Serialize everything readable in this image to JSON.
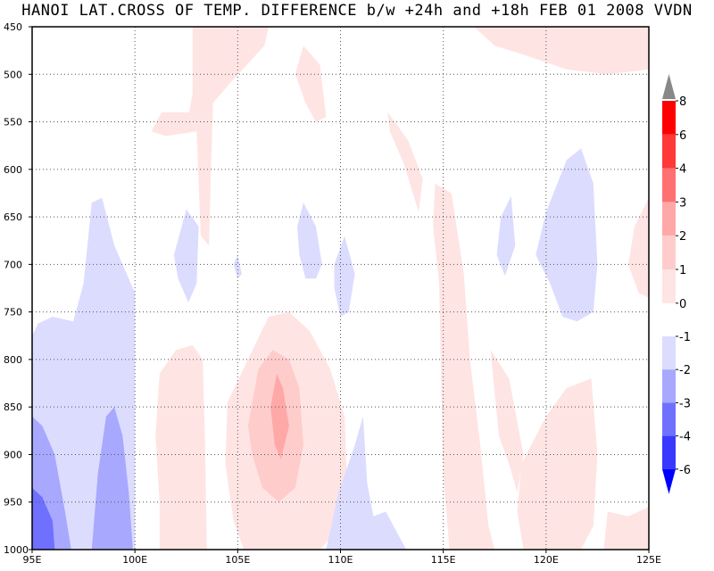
{
  "chart_data": {
    "type": "heatmap",
    "title": "HANOI LAT.CROSS OF TEMP. DIFFERENCE b/w +24h and +18h FEB 01 2008 VVDN",
    "x_ticks": [
      "95E",
      "100E",
      "105E",
      "110E",
      "115E",
      "120E",
      "125E"
    ],
    "y_ticks": [
      "450",
      "500",
      "550",
      "600",
      "650",
      "700",
      "750",
      "800",
      "850",
      "900",
      "950",
      "1000"
    ],
    "xlim": [
      95,
      125
    ],
    "ylim": [
      1000,
      450
    ],
    "y_axis": "pressure (hPa), decreasing upward",
    "grid": true,
    "legend_placement": "right",
    "colorbar_positive": {
      "labels": [
        "8",
        "6",
        "4",
        "3",
        "2",
        "1",
        "0"
      ],
      "colors": [
        "#ff0000",
        "#ff3838",
        "#ff7070",
        "#ffa8a8",
        "#ffcccc",
        "#ffe4e4"
      ]
    },
    "colorbar_negative": {
      "labels": [
        "-1",
        "-2",
        "-3",
        "-4",
        "-6"
      ],
      "colors": [
        "#dcdcff",
        "#a8a8ff",
        "#7070ff",
        "#3838ff",
        "#0000ff"
      ]
    },
    "regions": [
      {
        "level": 1,
        "points": [
          [
            102.8,
            450
          ],
          [
            106.5,
            450
          ],
          [
            106.3,
            470
          ],
          [
            104.6,
            510
          ],
          [
            103.8,
            530
          ],
          [
            103.7,
            600
          ],
          [
            103.6,
            680
          ],
          [
            103.2,
            670
          ],
          [
            103.0,
            560
          ],
          [
            102.6,
            545
          ],
          [
            102.8,
            520
          ]
        ]
      },
      {
        "level": 1,
        "points": [
          [
            101.3,
            540
          ],
          [
            102.9,
            540
          ],
          [
            103.0,
            560
          ],
          [
            101.5,
            565
          ],
          [
            100.8,
            560
          ]
        ]
      },
      {
        "level": 1,
        "points": [
          [
            108.2,
            470
          ],
          [
            109.0,
            490
          ],
          [
            109.3,
            545
          ],
          [
            108.8,
            550
          ],
          [
            108.3,
            530
          ],
          [
            107.8,
            500
          ]
        ]
      },
      {
        "level": 1,
        "points": [
          [
            112.3,
            540
          ],
          [
            113.3,
            570
          ],
          [
            114.0,
            610
          ],
          [
            113.8,
            645
          ],
          [
            113.1,
            595
          ],
          [
            112.4,
            560
          ]
        ]
      },
      {
        "level": 1,
        "points": [
          [
            116.5,
            450
          ],
          [
            125.0,
            450
          ],
          [
            125.0,
            495
          ],
          [
            123.0,
            500
          ],
          [
            121.0,
            495
          ],
          [
            119.0,
            480
          ],
          [
            117.5,
            470
          ]
        ]
      },
      {
        "level": 1,
        "points": [
          [
            104.5,
            845
          ],
          [
            105.5,
            800
          ],
          [
            106.5,
            755
          ],
          [
            107.5,
            750
          ],
          [
            108.5,
            770
          ],
          [
            109.5,
            810
          ],
          [
            110.2,
            860
          ],
          [
            110.3,
            920
          ],
          [
            110.0,
            975
          ],
          [
            109.0,
            1000
          ],
          [
            105.3,
            1000
          ],
          [
            104.8,
            970
          ],
          [
            104.4,
            910
          ]
        ]
      },
      {
        "level": 1,
        "points": [
          [
            101.2,
            815
          ],
          [
            102.0,
            790
          ],
          [
            102.8,
            785
          ],
          [
            103.3,
            800
          ],
          [
            103.4,
            880
          ],
          [
            103.5,
            1000
          ],
          [
            101.2,
            1000
          ],
          [
            101.2,
            950
          ],
          [
            101.0,
            880
          ]
        ]
      },
      {
        "level": 1,
        "points": [
          [
            114.6,
            615
          ],
          [
            115.4,
            625
          ],
          [
            116.0,
            710
          ],
          [
            116.3,
            800
          ],
          [
            116.8,
            890
          ],
          [
            117.2,
            975
          ],
          [
            117.5,
            1000
          ],
          [
            115.3,
            1000
          ],
          [
            115.0,
            920
          ],
          [
            114.9,
            830
          ],
          [
            114.8,
            720
          ],
          [
            114.5,
            660
          ]
        ]
      },
      {
        "level": 1,
        "points": [
          [
            117.3,
            790
          ],
          [
            118.2,
            820
          ],
          [
            118.9,
            900
          ],
          [
            118.6,
            940
          ],
          [
            118.2,
            910
          ],
          [
            117.7,
            880
          ]
        ]
      },
      {
        "level": 1,
        "points": [
          [
            118.8,
            910
          ],
          [
            120.0,
            860
          ],
          [
            121.0,
            830
          ],
          [
            122.2,
            820
          ],
          [
            122.5,
            900
          ],
          [
            122.3,
            975
          ],
          [
            121.7,
            1000
          ],
          [
            118.9,
            1000
          ],
          [
            118.6,
            960
          ]
        ]
      },
      {
        "level": 1,
        "points": [
          [
            123.0,
            960
          ],
          [
            124.0,
            965
          ],
          [
            125.0,
            955
          ],
          [
            125.0,
            1000
          ],
          [
            122.8,
            1000
          ]
        ]
      },
      {
        "level": 1,
        "points": [
          [
            125.0,
            630
          ],
          [
            124.3,
            660
          ],
          [
            124.0,
            700
          ],
          [
            124.5,
            730
          ],
          [
            125.0,
            735
          ]
        ]
      },
      {
        "level": 2,
        "points": [
          [
            105.5,
            870
          ],
          [
            106.0,
            810
          ],
          [
            106.7,
            790
          ],
          [
            107.5,
            800
          ],
          [
            108.0,
            830
          ],
          [
            108.2,
            890
          ],
          [
            107.8,
            935
          ],
          [
            107.0,
            950
          ],
          [
            106.2,
            935
          ],
          [
            105.7,
            900
          ]
        ]
      },
      {
        "level": 3,
        "points": [
          [
            106.6,
            850
          ],
          [
            106.9,
            815
          ],
          [
            107.2,
            830
          ],
          [
            107.5,
            870
          ],
          [
            107.1,
            905
          ],
          [
            106.8,
            890
          ]
        ]
      },
      {
        "level": -1,
        "points": [
          [
            95.0,
            775
          ],
          [
            95.3,
            762
          ],
          [
            96.0,
            755
          ],
          [
            97.0,
            760
          ],
          [
            97.5,
            720
          ],
          [
            97.9,
            635
          ],
          [
            98.4,
            630
          ],
          [
            99.0,
            680
          ],
          [
            99.8,
            720
          ],
          [
            100.0,
            730
          ],
          [
            100.0,
            1000
          ],
          [
            95.0,
            1000
          ]
        ]
      },
      {
        "level": -1,
        "points": [
          [
            101.9,
            690
          ],
          [
            102.5,
            642
          ],
          [
            103.1,
            660
          ],
          [
            103.0,
            720
          ],
          [
            102.6,
            740
          ],
          [
            102.1,
            715
          ]
        ]
      },
      {
        "level": -1,
        "points": [
          [
            104.8,
            700
          ],
          [
            105.0,
            690
          ],
          [
            105.2,
            710
          ],
          [
            105.0,
            715
          ]
        ]
      },
      {
        "level": -1,
        "points": [
          [
            107.9,
            660
          ],
          [
            108.2,
            635
          ],
          [
            108.8,
            660
          ],
          [
            109.1,
            700
          ],
          [
            108.8,
            715
          ],
          [
            108.3,
            715
          ],
          [
            108.0,
            690
          ]
        ]
      },
      {
        "level": -1,
        "points": [
          [
            109.7,
            700
          ],
          [
            110.2,
            670
          ],
          [
            110.7,
            710
          ],
          [
            110.4,
            750
          ],
          [
            110.0,
            755
          ],
          [
            109.7,
            725
          ]
        ]
      },
      {
        "level": -1,
        "points": [
          [
            109.3,
            1000
          ],
          [
            109.9,
            940
          ],
          [
            110.7,
            890
          ],
          [
            111.1,
            860
          ],
          [
            111.3,
            930
          ],
          [
            111.6,
            965
          ],
          [
            112.2,
            960
          ],
          [
            113.2,
            1000
          ]
        ]
      },
      {
        "level": -1,
        "points": [
          [
            117.8,
            650
          ],
          [
            118.3,
            628
          ],
          [
            118.5,
            680
          ],
          [
            118.0,
            712
          ],
          [
            117.6,
            690
          ]
        ]
      },
      {
        "level": -1,
        "points": [
          [
            119.5,
            690
          ],
          [
            120.0,
            645
          ],
          [
            121.0,
            590
          ],
          [
            121.7,
            578
          ],
          [
            122.3,
            615
          ],
          [
            122.5,
            700
          ],
          [
            122.3,
            750
          ],
          [
            121.5,
            760
          ],
          [
            120.8,
            755
          ],
          [
            120.2,
            720
          ]
        ]
      },
      {
        "level": -2,
        "points": [
          [
            95.0,
            860
          ],
          [
            95.5,
            870
          ],
          [
            96.1,
            900
          ],
          [
            96.6,
            960
          ],
          [
            96.9,
            1000
          ],
          [
            95.0,
            1000
          ]
        ]
      },
      {
        "level": -2,
        "points": [
          [
            97.9,
            1000
          ],
          [
            98.2,
            920
          ],
          [
            98.6,
            860
          ],
          [
            99.0,
            850
          ],
          [
            99.4,
            880
          ],
          [
            99.7,
            940
          ],
          [
            99.9,
            1000
          ]
        ]
      },
      {
        "level": -3,
        "points": [
          [
            95.0,
            935
          ],
          [
            95.5,
            945
          ],
          [
            96.0,
            970
          ],
          [
            96.1,
            1000
          ],
          [
            95.0,
            1000
          ]
        ]
      }
    ]
  }
}
